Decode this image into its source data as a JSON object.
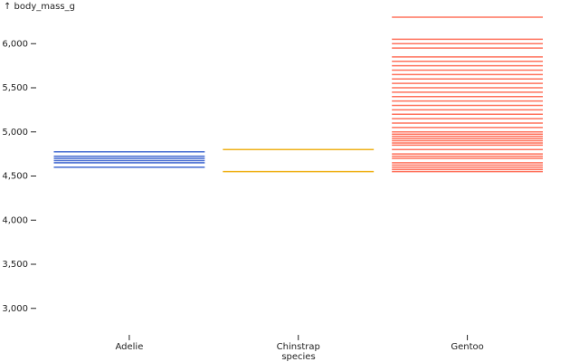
{
  "chart_data": {
    "type": "tick",
    "ylabel": "↑ body_mass_g",
    "xlabel": "species",
    "categories": [
      "Adelie",
      "Chinstrap",
      "Gentoo"
    ],
    "colors": [
      "#4269d0",
      "#efb118",
      "#ff725c"
    ],
    "values": [
      [
        4775,
        4725,
        4700,
        4675,
        4650,
        4600
      ],
      [
        4800,
        4550
      ],
      [
        6300,
        6050,
        6000,
        5950,
        5850,
        5800,
        5750,
        5700,
        5650,
        5600,
        5550,
        5500,
        5450,
        5400,
        5350,
        5300,
        5250,
        5200,
        5150,
        5100,
        5050,
        5000,
        4975,
        4950,
        4925,
        4900,
        4875,
        4850,
        4800,
        4750,
        4725,
        4700,
        4650,
        4625,
        4600,
        4575,
        4550
      ]
    ],
    "ylim": [
      2700,
      6300
    ],
    "yticks": [
      {
        "value": 3000,
        "label": "3,000"
      },
      {
        "value": 3500,
        "label": "3,500"
      },
      {
        "value": 4000,
        "label": "4,000"
      },
      {
        "value": 4500,
        "label": "4,500"
      },
      {
        "value": 5000,
        "label": "5,000"
      },
      {
        "value": 5500,
        "label": "5,500"
      },
      {
        "value": 6000,
        "label": "6,000"
      }
    ]
  }
}
